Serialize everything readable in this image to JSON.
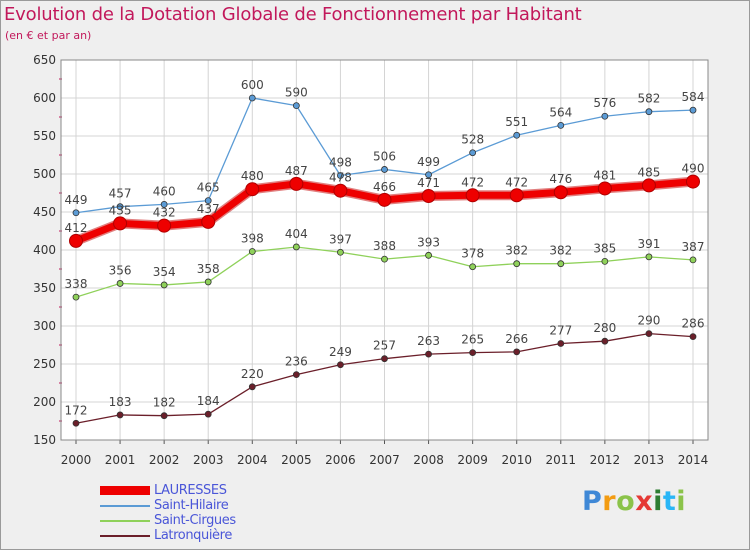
{
  "title": "Evolution de la Dotation Globale de Fonctionnement par Habitant",
  "subtitle": "(en € et par an)",
  "colors": {
    "accent": "#c2185b",
    "legend_text": "#4a56d8",
    "axis_text": "#333333",
    "grid": "#d4d4d4"
  },
  "logo": {
    "letters": [
      {
        "ch": "P",
        "color": "#3f88d6"
      },
      {
        "ch": "r",
        "color": "#f39c12"
      },
      {
        "ch": "o",
        "color": "#8bc34a"
      },
      {
        "ch": "x",
        "color": "#e53935"
      },
      {
        "ch": "i",
        "color": "#2e7d32"
      },
      {
        "ch": "t",
        "color": "#29b6f6"
      },
      {
        "ch": "i",
        "color": "#8bc34a"
      }
    ]
  },
  "chart_data": {
    "type": "line",
    "title": "Evolution de la Dotation Globale de Fonctionnement par Habitant",
    "subtitle": "(en € et par an)",
    "x": [
      "2000",
      "2001",
      "2002",
      "2003",
      "2004",
      "2005",
      "2006",
      "2007",
      "2008",
      "2009",
      "2010",
      "2011",
      "2012",
      "2013",
      "2014"
    ],
    "ylim": [
      150,
      650
    ],
    "yticks": [
      150,
      200,
      250,
      300,
      350,
      400,
      450,
      500,
      550,
      600,
      650
    ],
    "grid": true,
    "legend_position": "bottom-left",
    "series": [
      {
        "name": "LAURESSES",
        "color": "#ee0000",
        "emphasis": true,
        "values": [
          412,
          435,
          432,
          437,
          480,
          487,
          478,
          466,
          471,
          472,
          472,
          476,
          481,
          485,
          490
        ]
      },
      {
        "name": "Saint-Hilaire",
        "color": "#5b9bd5",
        "emphasis": false,
        "values": [
          449,
          457,
          460,
          465,
          600,
          590,
          498,
          506,
          499,
          528,
          551,
          564,
          576,
          582,
          584
        ]
      },
      {
        "name": "Saint-Cirgues",
        "color": "#8fd15a",
        "emphasis": false,
        "values": [
          338,
          356,
          354,
          358,
          398,
          404,
          397,
          388,
          393,
          378,
          382,
          382,
          385,
          391,
          387
        ]
      },
      {
        "name": "Latronquière",
        "color": "#6b1f2a",
        "emphasis": false,
        "values": [
          172,
          183,
          182,
          184,
          220,
          236,
          249,
          257,
          263,
          265,
          266,
          277,
          280,
          290,
          286
        ]
      }
    ]
  }
}
